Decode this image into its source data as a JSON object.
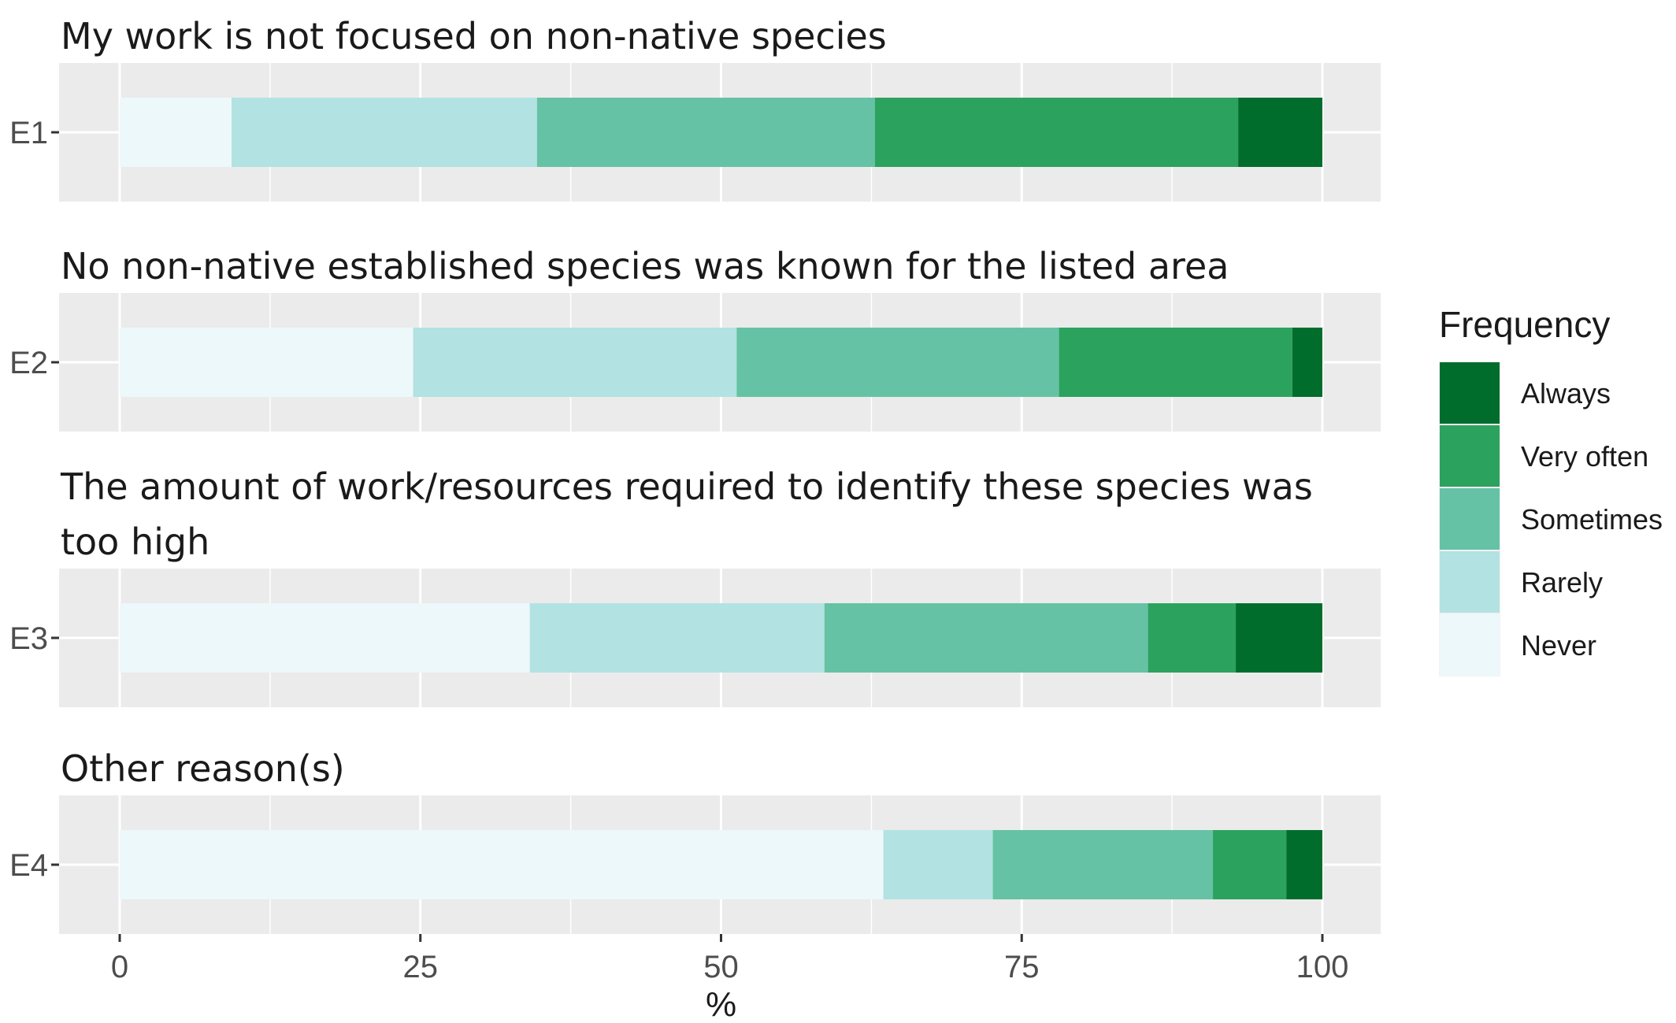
{
  "chart_data": {
    "type": "bar",
    "orientation": "horizontal",
    "stacked": true,
    "xlabel": "%",
    "xlim": [
      0,
      100
    ],
    "xticks": [
      "0",
      "25",
      "50",
      "75",
      "100"
    ],
    "grid": true,
    "legend": {
      "title": "Frequency",
      "placement": "right",
      "entries": [
        "Always",
        "Very often",
        "Sometimes",
        "Rarely",
        "Never"
      ]
    },
    "colors": {
      "Never": "#edf8fb",
      "Rarely": "#b2e2e2",
      "Sometimes": "#66c2a4",
      "Very often": "#2ca25f",
      "Always": "#006d2c"
    },
    "stack_order": [
      "Never",
      "Rarely",
      "Sometimes",
      "Very often",
      "Always"
    ],
    "panels": [
      {
        "title_lines": [
          "My work is not focused on non-native species"
        ],
        "category": "E1",
        "values": {
          "Never": 9.3,
          "Rarely": 25.4,
          "Sometimes": 28.1,
          "Very often": 30.2,
          "Always": 7.0
        }
      },
      {
        "title_lines": [
          "No non-native established species was known for the listed area"
        ],
        "category": "E2",
        "values": {
          "Never": 24.4,
          "Rarely": 26.9,
          "Sometimes": 26.8,
          "Very often": 19.4,
          "Always": 2.5
        }
      },
      {
        "title_lines": [
          "The amount of work/resources required to identify these species was",
          "too high"
        ],
        "category": "E3",
        "values": {
          "Never": 34.1,
          "Rarely": 24.5,
          "Sometimes": 26.9,
          "Very often": 7.3,
          "Always": 7.2
        }
      },
      {
        "title_lines": [
          "Other reason(s)"
        ],
        "category": "E4",
        "values": {
          "Never": 63.5,
          "Rarely": 9.1,
          "Sometimes": 18.3,
          "Very often": 6.1,
          "Always": 3.0
        }
      }
    ]
  }
}
